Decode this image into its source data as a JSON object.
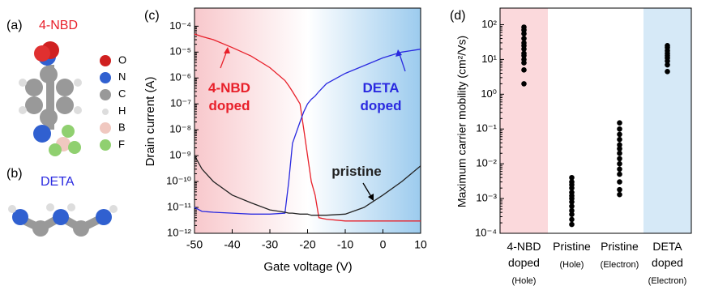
{
  "panels": {
    "a": {
      "label": "(a)",
      "molecule": "4-NBD",
      "atoms": [
        "O",
        "N",
        "C",
        "H",
        "B",
        "F"
      ]
    },
    "b": {
      "label": "(b)",
      "molecule": "DETA"
    },
    "c": {
      "label": "(c)"
    },
    "d": {
      "label": "(d)"
    }
  },
  "chart_data": [
    {
      "type": "line",
      "x_label": "Gate voltage (V)",
      "y_label": "Drain current (A)",
      "log_y": true,
      "x": [
        -50,
        -48,
        -45,
        -40,
        -35,
        -30,
        -26,
        -25,
        -24,
        -22,
        -21,
        -20,
        -19,
        -18,
        -17,
        -15,
        -10,
        -5,
        0,
        5,
        10
      ],
      "series": [
        {
          "name": "4-NBD doped",
          "color": "#e8202a",
          "values": [
            5e-05,
            4e-05,
            3e-05,
            1.5e-05,
            7e-06,
            2.5e-06,
            8e-07,
            5e-07,
            3e-07,
            1e-07,
            1e-08,
            1e-09,
            1e-10,
            3e-11,
            4e-12,
            3.5e-12,
            3e-12,
            3e-12,
            3e-12,
            3e-12,
            3e-12
          ]
        },
        {
          "name": "DETA doped",
          "color": "#2a2ae0",
          "values": [
            1e-11,
            7e-12,
            6.5e-12,
            6e-12,
            5.5e-12,
            5.5e-12,
            6e-12,
            1e-10,
            3e-09,
            2e-08,
            5e-08,
            1e-07,
            1.5e-07,
            2e-07,
            3e-07,
            6e-07,
            1.5e-06,
            3e-06,
            6e-06,
            1e-05,
            1.3e-05
          ]
        },
        {
          "name": "pristine",
          "color": "#222222",
          "values": [
            1e-09,
            3e-10,
            1e-10,
            3e-11,
            1.5e-11,
            8e-12,
            6.5e-12,
            6e-12,
            6e-12,
            5.5e-12,
            5.5e-12,
            5.5e-12,
            5e-12,
            5e-12,
            5e-12,
            5e-12,
            5.5e-12,
            1e-11,
            3e-11,
            1e-10,
            4e-10
          ]
        }
      ],
      "xlim": [
        -50,
        10
      ],
      "xticks": [
        -50,
        -40,
        -30,
        -20,
        -10,
        0,
        10
      ],
      "ylim": [
        1e-12,
        0.0005
      ],
      "yticks": [
        {
          "value": 1e-12,
          "label": "10⁻¹²"
        },
        {
          "value": 1e-11,
          "label": "10⁻¹¹"
        },
        {
          "value": 1e-10,
          "label": "10⁻¹⁰"
        },
        {
          "value": 1e-09,
          "label": "10⁻⁹"
        },
        {
          "value": 1e-08,
          "label": "10⁻⁸"
        },
        {
          "value": 1e-07,
          "label": "10⁻⁷"
        },
        {
          "value": 1e-06,
          "label": "10⁻⁶"
        },
        {
          "value": 1e-05,
          "label": "10⁻⁵"
        },
        {
          "value": 0.0001,
          "label": "10⁻⁴"
        }
      ]
    },
    {
      "type": "strip",
      "y_label": "Maximum carrier mobility (cm²/Vs)",
      "log_y": true,
      "color": "#000000",
      "categories": [
        "4-NBD doped",
        "Pristine",
        "Pristine",
        "DETA doped"
      ],
      "carriers": [
        "(Hole)",
        "(Hole)",
        "(Electron)",
        "(Electron)"
      ],
      "values": [
        [
          2,
          5,
          8,
          10,
          13,
          15,
          20,
          25,
          30,
          40,
          55,
          70,
          85
        ],
        [
          0.00018,
          0.00025,
          0.00035,
          0.00045,
          0.0006,
          0.0008,
          0.001,
          0.0012,
          0.0015,
          0.002,
          0.0025,
          0.003,
          0.004
        ],
        [
          0.0013,
          0.0018,
          0.003,
          0.005,
          0.007,
          0.01,
          0.014,
          0.02,
          0.027,
          0.035,
          0.05,
          0.07,
          0.1,
          0.15
        ],
        [
          4.5,
          7,
          9,
          11,
          13,
          15,
          18,
          22,
          25
        ]
      ],
      "ylim": [
        0.0001,
        300
      ],
      "yticks": [
        {
          "value": 0.0001,
          "label": "10⁻⁴"
        },
        {
          "value": 0.001,
          "label": "10⁻³"
        },
        {
          "value": 0.01,
          "label": "10⁻²"
        },
        {
          "value": 0.1,
          "label": "10⁻¹"
        },
        {
          "value": 1,
          "label": "10⁰"
        },
        {
          "value": 10,
          "label": "10¹"
        },
        {
          "value": 100,
          "label": "10²"
        }
      ]
    }
  ]
}
